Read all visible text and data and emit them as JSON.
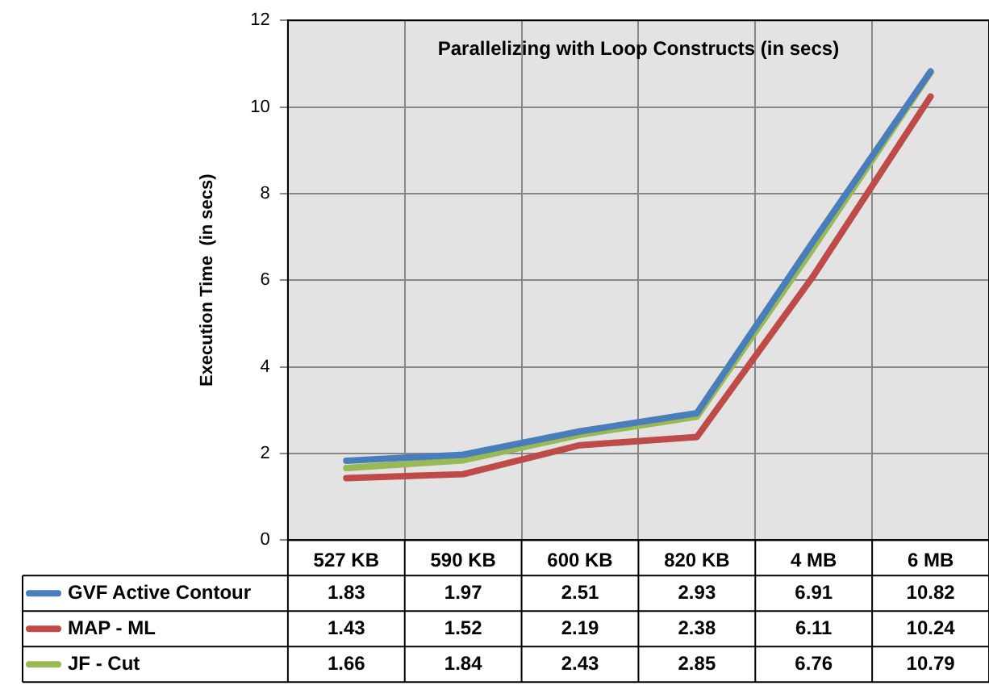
{
  "chart_data": {
    "type": "line",
    "title": "Parallelizing with Loop Constructs (in secs)",
    "ylabel": "Execution Time  (in secs)",
    "categories": [
      "527 KB",
      "590 KB",
      "600 KB",
      "820 KB",
      "4 MB",
      "6 MB"
    ],
    "series": [
      {
        "name": "GVF Active Contour",
        "color": "#4a7ebb",
        "values": [
          1.83,
          1.97,
          2.51,
          2.93,
          6.91,
          10.82
        ]
      },
      {
        "name": "MAP - ML",
        "color": "#be4b48",
        "values": [
          1.43,
          1.52,
          2.19,
          2.38,
          6.11,
          10.24
        ]
      },
      {
        "name": "JF - Cut",
        "color": "#98b954",
        "values": [
          1.66,
          1.84,
          2.43,
          2.85,
          6.76,
          10.79
        ]
      }
    ],
    "ylim": [
      0,
      12
    ],
    "yticks": [
      0,
      2,
      4,
      6,
      8,
      10,
      12
    ],
    "grid": true,
    "legend": "bottom",
    "data_labels": true,
    "marker": "none",
    "line_style": "solid"
  }
}
